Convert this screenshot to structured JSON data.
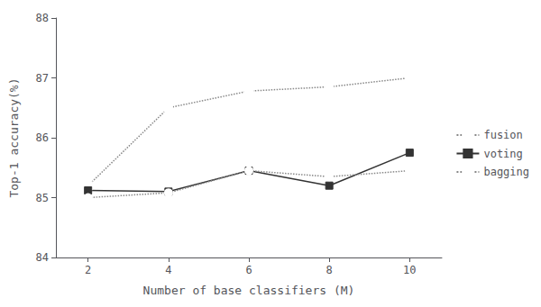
{
  "chart_data": {
    "type": "line",
    "xlabel": "Number of base classifiers (M)",
    "ylabel": "Top-1 accuracy(%)",
    "x": [
      2,
      4,
      6,
      8,
      10
    ],
    "series": [
      {
        "name": "fusion",
        "color": "#888888",
        "line_style": "dotted",
        "marker": "open-square",
        "values": [
          85.2,
          86.5,
          86.78,
          86.85,
          87.0
        ]
      },
      {
        "name": "voting",
        "color": "#333333",
        "line_style": "solid",
        "marker": "square",
        "values": [
          85.12,
          85.1,
          85.45,
          85.2,
          85.75
        ]
      },
      {
        "name": "bagging",
        "color": "#888888",
        "line_style": "dotted",
        "marker": "open-circle",
        "values": [
          85.0,
          85.08,
          85.45,
          85.35,
          85.45
        ]
      }
    ],
    "xlim": [
      1.2,
      10.8
    ],
    "xticks": [
      2,
      4,
      6,
      8,
      10
    ],
    "ylim": [
      84,
      88
    ],
    "yticks": [
      84,
      85,
      86,
      87,
      88
    ],
    "grid": false,
    "legend": "right"
  }
}
